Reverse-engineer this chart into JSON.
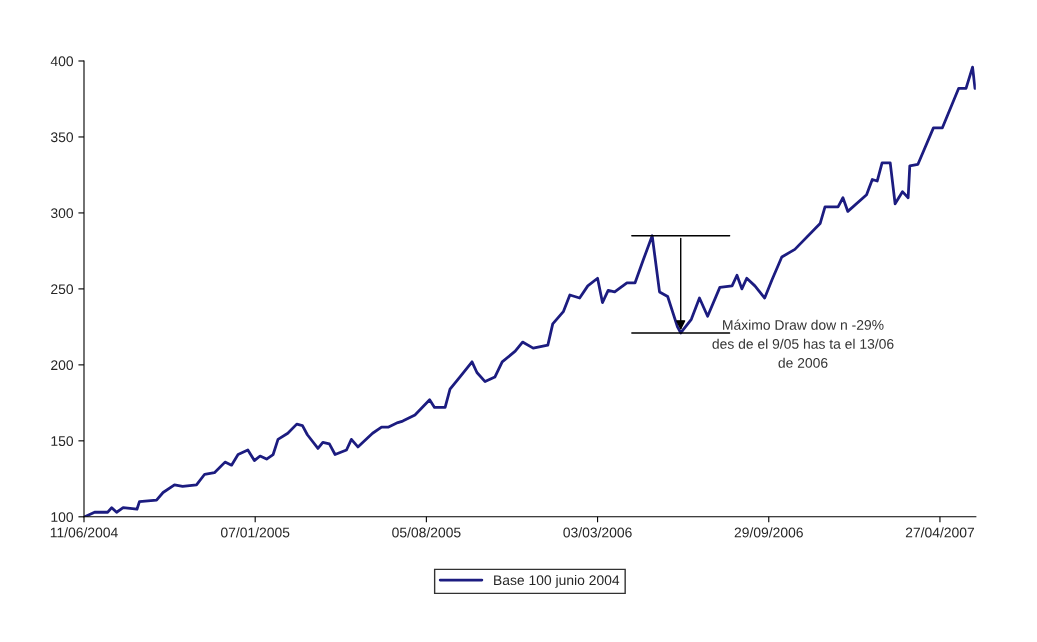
{
  "chart_data": {
    "type": "line",
    "x": [
      "2004-06-12",
      "2004-06-24",
      "2004-07-10",
      "2004-07-15",
      "2004-07-21",
      "2004-07-29",
      "2004-08-15",
      "2004-08-18",
      "2004-09-08",
      "2004-09-16",
      "2004-09-30",
      "2004-10-10",
      "2004-10-27",
      "2004-11-06",
      "2004-11-18",
      "2004-12-01",
      "2004-12-09",
      "2004-12-17",
      "2004-12-29",
      "2005-01-06",
      "2005-01-13",
      "2005-01-21",
      "2005-01-29",
      "2005-02-04",
      "2005-02-16",
      "2005-02-27",
      "2005-03-06",
      "2005-03-12",
      "2005-03-25",
      "2005-03-31",
      "2005-04-08",
      "2005-04-15",
      "2005-04-29",
      "2005-05-05",
      "2005-05-13",
      "2005-05-31",
      "2005-06-11",
      "2005-06-19",
      "2005-07-01",
      "2005-07-07",
      "2005-07-22",
      "2005-08-09",
      "2005-08-15",
      "2005-08-28",
      "2005-09-03",
      "2005-09-15",
      "2005-09-30",
      "2005-10-06",
      "2005-10-16",
      "2005-10-28",
      "2005-11-06",
      "2005-11-22",
      "2005-12-01",
      "2005-12-14",
      "2006-01-01",
      "2006-01-07",
      "2006-01-20",
      "2006-01-28",
      "2006-02-09",
      "2006-02-19",
      "2006-03-03",
      "2006-03-09",
      "2006-03-16",
      "2006-03-24",
      "2006-04-08",
      "2006-04-18",
      "2006-04-28",
      "2006-05-09",
      "2006-05-18",
      "2006-05-28",
      "2006-06-09",
      "2006-06-13",
      "2006-06-26",
      "2006-07-06",
      "2006-07-16",
      "2006-07-31",
      "2006-08-15",
      "2006-08-21",
      "2006-08-27",
      "2006-09-02",
      "2006-09-12",
      "2006-09-24",
      "2006-10-03",
      "2006-10-15",
      "2006-10-31",
      "2006-12-01",
      "2006-12-07",
      "2006-12-23",
      "2006-12-29",
      "2007-01-04",
      "2007-01-27",
      "2007-02-03",
      "2007-02-09",
      "2007-02-15",
      "2007-02-25",
      "2007-03-03",
      "2007-03-12",
      "2007-03-19",
      "2007-03-21",
      "2007-03-31",
      "2007-04-19",
      "2007-04-30",
      "2007-05-20",
      "2007-05-29",
      "2007-06-06",
      "2007-06-09"
    ],
    "series": [
      {
        "name": "Base 100 junio 2004",
        "color": "#1c1c80",
        "values": [
          100,
          103,
          103,
          106,
          103,
          106,
          105,
          110,
          111,
          116,
          121,
          120,
          121,
          128,
          129,
          136,
          134,
          141,
          144,
          137,
          140,
          138,
          141,
          151,
          155,
          161,
          160,
          154,
          145,
          149,
          148,
          141,
          144,
          151,
          146,
          155,
          159,
          159,
          162,
          163,
          167,
          177,
          172,
          172,
          184,
          192,
          202,
          195,
          189,
          192,
          202,
          209,
          215,
          211,
          213,
          227,
          235,
          246,
          244,
          252,
          257,
          241,
          249,
          248,
          254,
          254,
          269,
          285,
          248,
          245,
          225,
          221,
          230,
          244,
          232,
          251,
          252,
          259,
          250,
          257,
          252,
          244,
          256,
          271,
          276,
          293,
          304,
          304,
          310,
          301,
          312,
          322,
          321,
          333,
          333,
          306,
          314,
          310,
          331,
          332,
          356,
          356,
          382,
          382,
          396,
          382
        ]
      }
    ],
    "xlim": [
      "2004-06-11",
      "2007-06-10"
    ],
    "xticks": [
      {
        "value": "2004-06-11",
        "label": "11/06/2004"
      },
      {
        "value": "2005-01-07",
        "label": "07/01/2005"
      },
      {
        "value": "2005-08-05",
        "label": "05/08/2005"
      },
      {
        "value": "2006-03-03",
        "label": "03/03/2006"
      },
      {
        "value": "2006-09-29",
        "label": "29/09/2006"
      },
      {
        "value": "2007-04-27",
        "label": "27/04/2007"
      }
    ],
    "ylim": [
      100,
      400
    ],
    "yticks": [
      100,
      150,
      200,
      250,
      300,
      350,
      400
    ],
    "grid": false,
    "legend": "bottom",
    "annotations": [
      {
        "text": "Máximo Draw dow n -29%\ndes de el 9/05 has ta el 13/06\nde 2006",
        "x": "2006-06-13",
        "y": 221
      }
    ]
  }
}
